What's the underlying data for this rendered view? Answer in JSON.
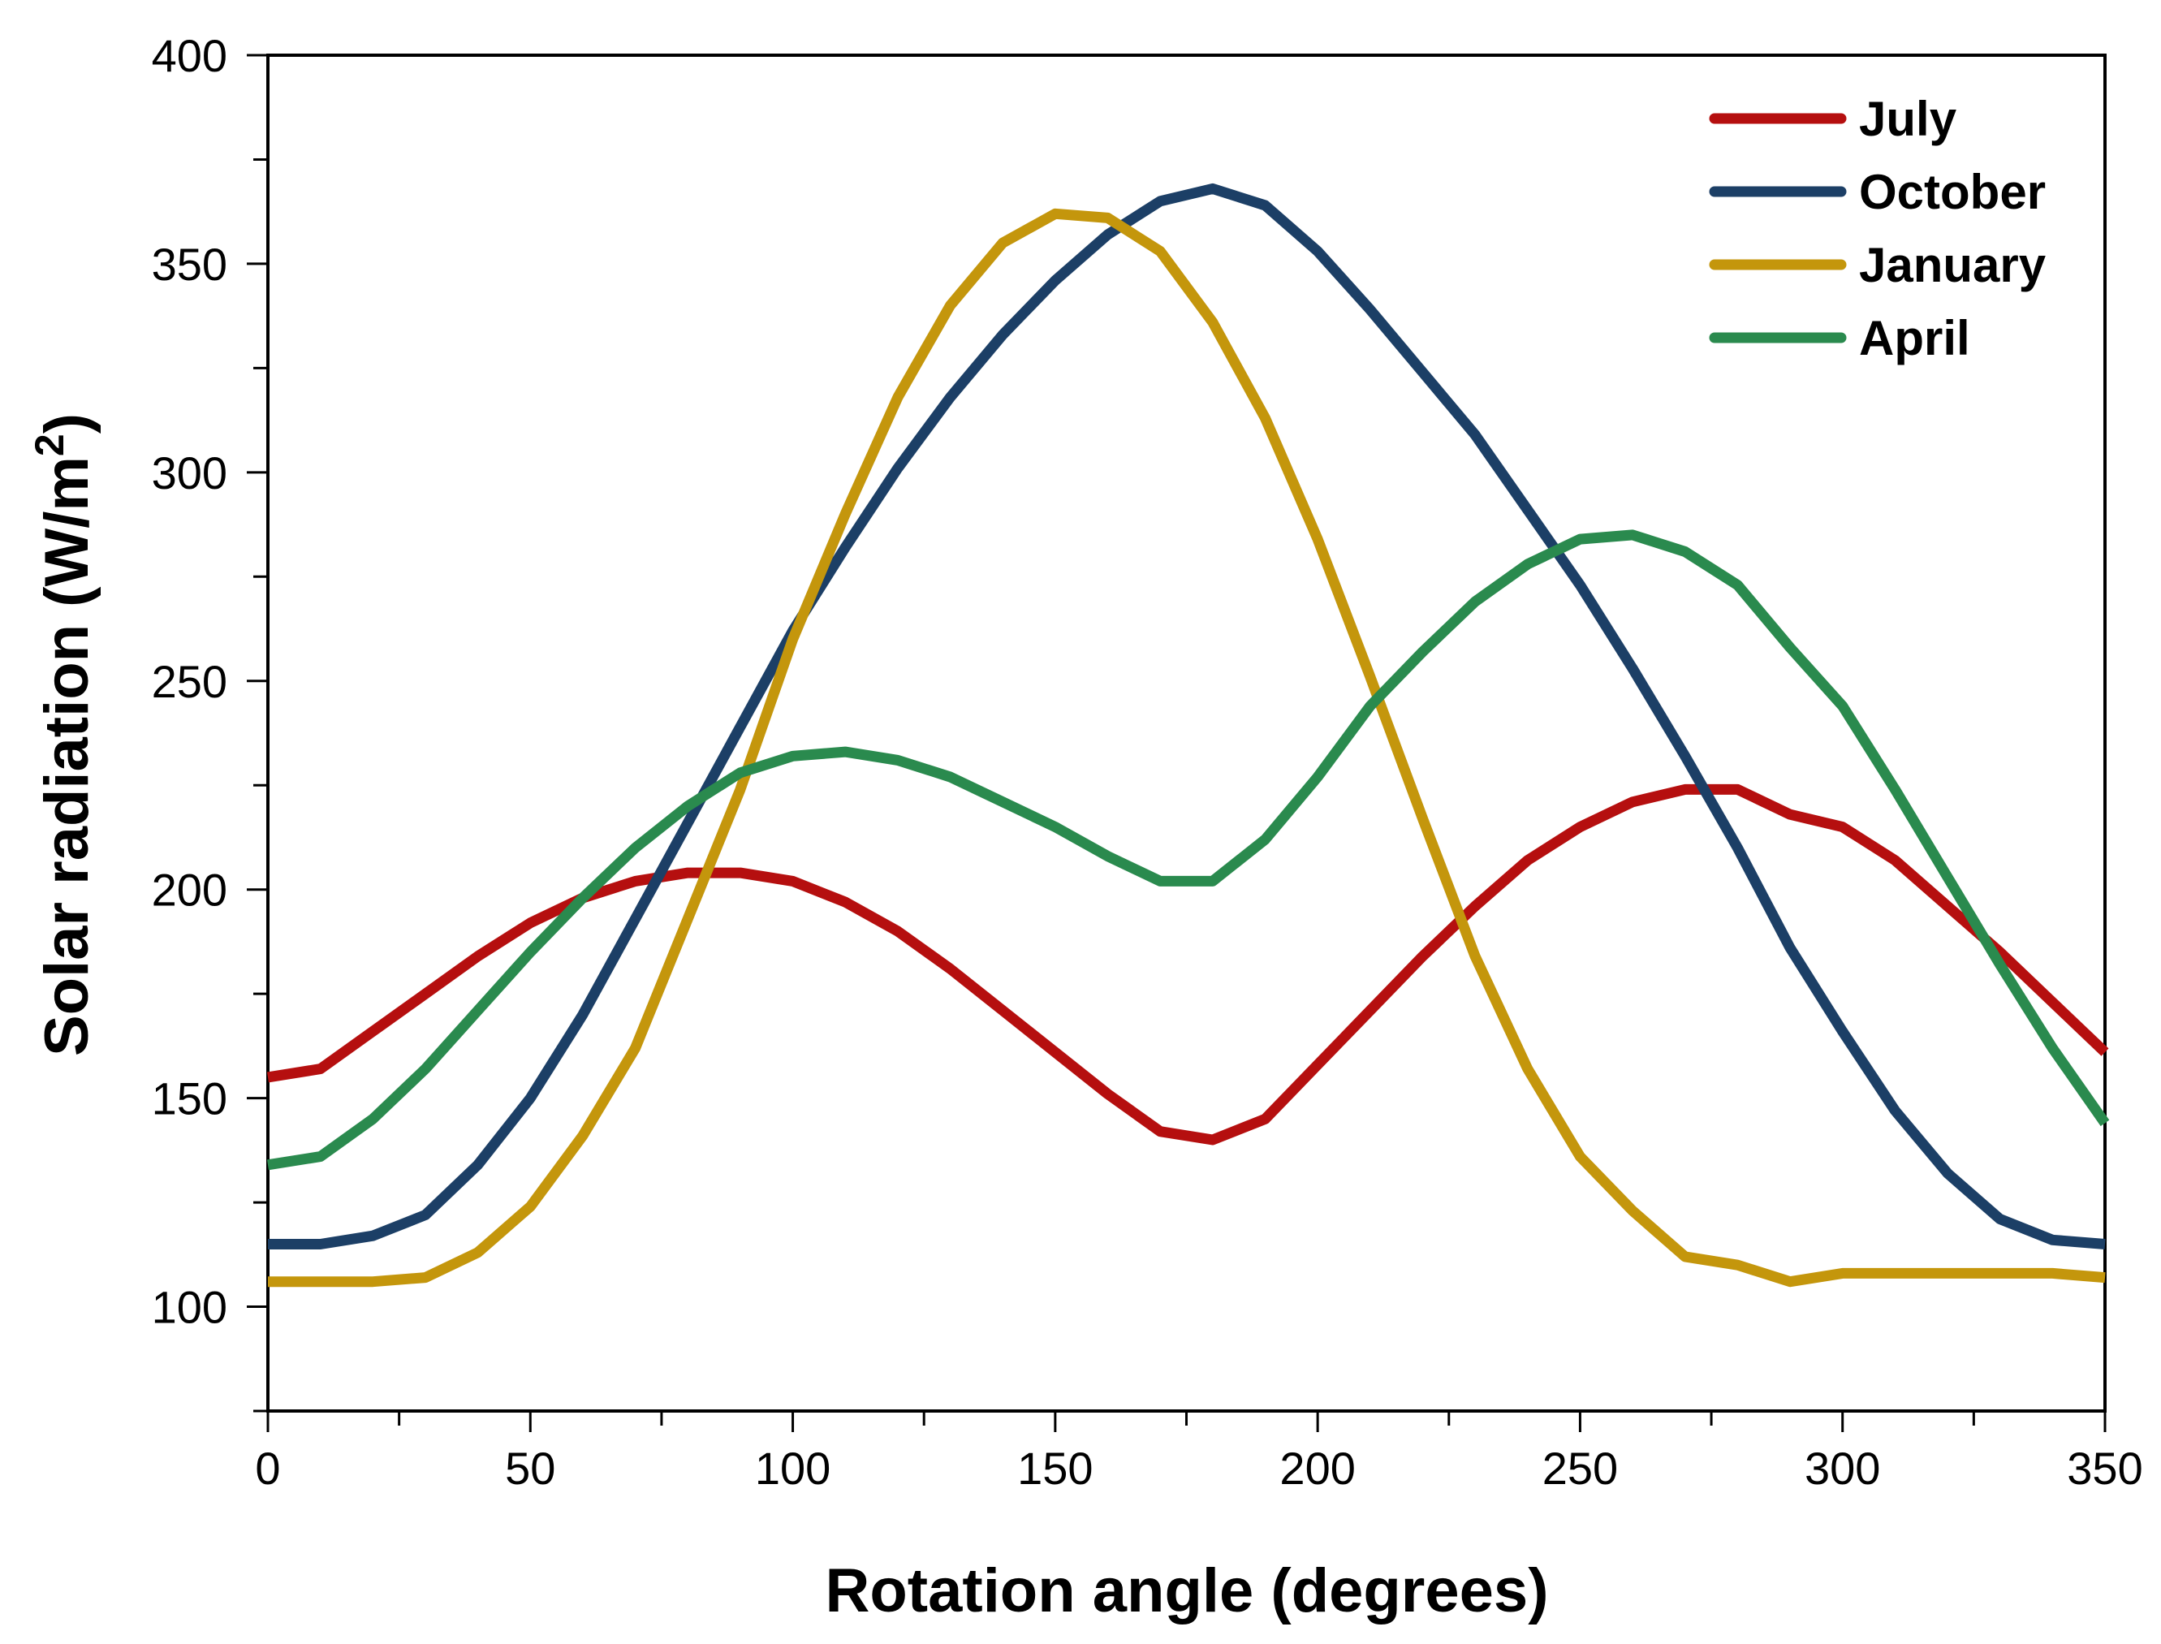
{
  "chart_data": {
    "type": "line",
    "title": "",
    "xlabel": "Rotation angle (degrees)",
    "ylabel_main": "Solar radiation (W/m",
    "ylabel_sup": "2",
    "ylabel_close": ")",
    "xlim": [
      0,
      350
    ],
    "ylim": [
      75,
      400
    ],
    "xticks": [
      0,
      50,
      100,
      150,
      200,
      250,
      300,
      350
    ],
    "xtick_labels": [
      "0",
      "50",
      "100",
      "150",
      "200",
      "250",
      "300",
      "350"
    ],
    "yticks": [
      100,
      150,
      200,
      250,
      300,
      350,
      400
    ],
    "ytick_labels": [
      "100",
      "150",
      "200",
      "250",
      "300",
      "350",
      "400"
    ],
    "grid": false,
    "legend_position": "top-right",
    "x": [
      0,
      10,
      20,
      30,
      40,
      50,
      60,
      70,
      80,
      90,
      100,
      110,
      120,
      130,
      140,
      150,
      160,
      170,
      180,
      190,
      200,
      210,
      220,
      230,
      240,
      250,
      260,
      270,
      280,
      290,
      300,
      310,
      320,
      330,
      340,
      350
    ],
    "series": [
      {
        "name": "July",
        "color": "#b50f0f",
        "values": [
          155,
          157,
          166,
          175,
          184,
          192,
          198,
          202,
          204,
          204,
          202,
          197,
          190,
          181,
          171,
          161,
          151,
          142,
          140,
          145,
          158,
          171,
          184,
          196,
          207,
          215,
          221,
          224,
          224,
          218,
          215,
          207,
          196,
          185,
          173,
          161
        ]
      },
      {
        "name": "October",
        "color": "#1c3f66",
        "values": [
          115,
          115,
          117,
          122,
          134,
          150,
          170,
          193,
          216,
          239,
          262,
          282,
          301,
          318,
          333,
          346,
          357,
          365,
          368,
          364,
          353,
          339,
          324,
          309,
          291,
          273,
          253,
          232,
          210,
          186,
          166,
          147,
          132,
          121,
          116,
          115
        ]
      },
      {
        "name": "January",
        "color": "#c4960c",
        "values": [
          106,
          106,
          106,
          107,
          113,
          124,
          141,
          162,
          193,
          224,
          260,
          290,
          318,
          340,
          355,
          362,
          361,
          353,
          336,
          313,
          284,
          251,
          217,
          184,
          157,
          136,
          123,
          112,
          110,
          106,
          108,
          108,
          108,
          108,
          108,
          107
        ]
      },
      {
        "name": "April",
        "color": "#2a8a4e",
        "values": [
          134,
          136,
          145,
          157,
          171,
          185,
          198,
          210,
          220,
          228,
          232,
          233,
          231,
          227,
          221,
          215,
          208,
          202,
          202,
          212,
          227,
          244,
          257,
          269,
          278,
          284,
          285,
          281,
          273,
          258,
          244,
          224,
          203,
          182,
          162,
          144
        ]
      }
    ]
  }
}
